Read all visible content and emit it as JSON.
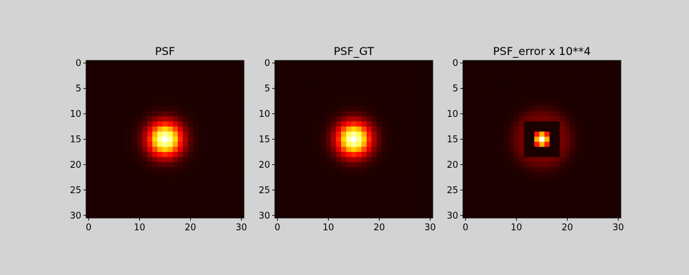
{
  "figure": {
    "background": "#d3d3d3",
    "colormap": "hot"
  },
  "chart_data": [
    {
      "type": "heatmap",
      "title": "PSF",
      "rows": 31,
      "cols": 31,
      "origin": "upper",
      "xlim": [
        -0.5,
        30.5
      ],
      "ylim": [
        30.5,
        -0.5
      ],
      "xticks": [
        0,
        10,
        20,
        30
      ],
      "yticks": [
        0,
        5,
        10,
        15,
        20,
        25,
        30
      ],
      "center": [
        15,
        15
      ],
      "model": "gaussian",
      "sigma": 2.3,
      "peak": 1.0,
      "background_level": 0.0,
      "grid": false
    },
    {
      "type": "heatmap",
      "title": "PSF_GT",
      "rows": 31,
      "cols": 31,
      "origin": "upper",
      "xlim": [
        -0.5,
        30.5
      ],
      "ylim": [
        30.5,
        -0.5
      ],
      "xticks": [
        0,
        10,
        20,
        30
      ],
      "yticks": [
        0,
        5,
        10,
        15,
        20,
        25,
        30
      ],
      "center": [
        15,
        15
      ],
      "model": "gaussian",
      "sigma": 2.3,
      "peak": 1.0,
      "background_level": 0.0,
      "grid": false
    },
    {
      "type": "heatmap",
      "title": "PSF_error x 10**4",
      "rows": 31,
      "cols": 31,
      "origin": "upper",
      "xlim": [
        -0.5,
        30.5
      ],
      "ylim": [
        30.5,
        -0.5
      ],
      "xticks": [
        0,
        10,
        20,
        30
      ],
      "yticks": [
        0,
        5,
        10,
        15,
        20,
        25,
        30
      ],
      "center": [
        15,
        15
      ],
      "model": "ring_error",
      "core_sigma": 1.0,
      "ring_radius": 4.0,
      "ring_width": 1.6,
      "ring_level": 0.13,
      "dark_ring_radius": 2.5,
      "peak": 1.0,
      "background_level": 0.0,
      "grid": false
    }
  ]
}
